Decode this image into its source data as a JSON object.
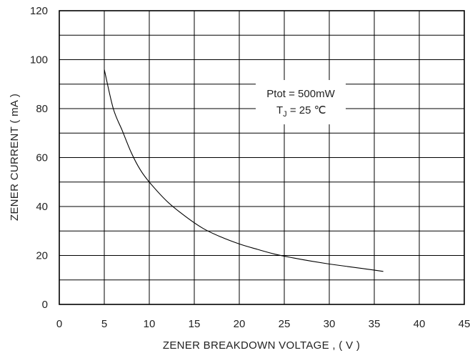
{
  "chart_data": {
    "type": "line",
    "xlabel": "ZENER BREAKDOWN VOLTAGE , ( V )",
    "ylabel": "ZENER CURRENT ( mA )",
    "xlim": [
      0,
      45
    ],
    "ylim": [
      0,
      120
    ],
    "x_ticks": [
      0,
      5,
      10,
      15,
      20,
      25,
      30,
      35,
      40,
      45
    ],
    "y_ticks": [
      0,
      20,
      40,
      60,
      80,
      100,
      120
    ],
    "grid": true,
    "annotations": {
      "line1": "Ptot = 500mW",
      "line2_main": "T",
      "line2_sub": "J",
      "line2_rest": " = 25 ℃"
    },
    "series": [
      {
        "x": [
          5,
          6,
          7,
          8,
          9,
          10,
          12,
          14,
          16,
          18,
          20,
          22,
          24,
          26,
          28,
          30,
          32,
          34,
          36
        ],
        "y": [
          96,
          80,
          71,
          62,
          55,
          50,
          42,
          36,
          31,
          27.5,
          24.7,
          22.5,
          20.5,
          19,
          17.7,
          16.5,
          15.5,
          14.5,
          13.5
        ]
      }
    ]
  }
}
